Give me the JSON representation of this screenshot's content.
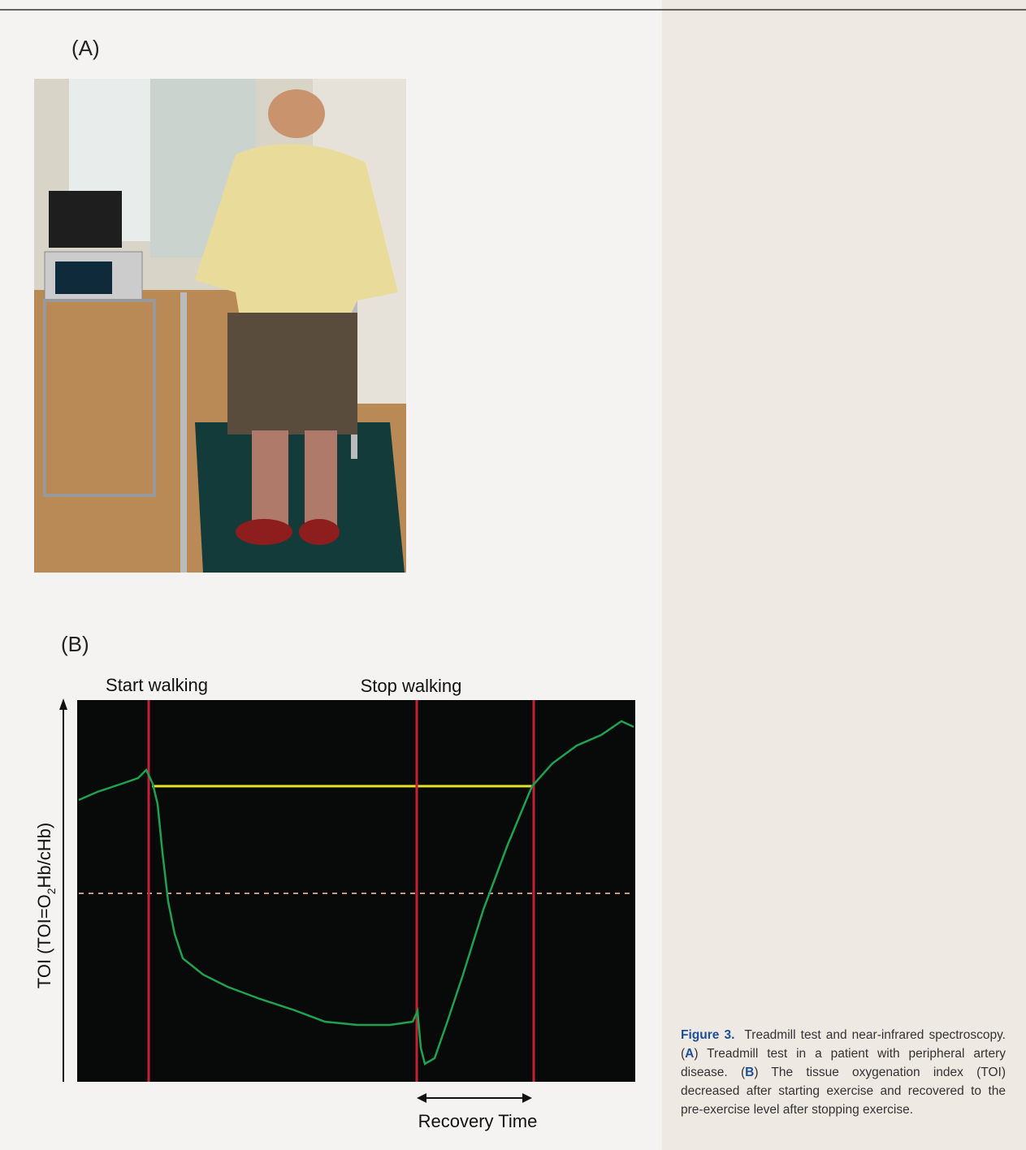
{
  "panel_a": {
    "label": "(A)"
  },
  "panel_b": {
    "label": "(B)",
    "annotations": {
      "start": "Start walking",
      "stop": "Stop walking",
      "recovery": "Recovery Time"
    },
    "y_axis_label": {
      "prefix": "TOI  (TOI=O",
      "sub": "2",
      "suffix": "Hb/cHb)"
    }
  },
  "caption": {
    "figure_label": "Figure 3.",
    "parts": [
      "Treadmill test and near-infrared spectroscopy. (",
      "A",
      ") Treadmill test in a patient with peripheral artery disease. (",
      "B",
      ") The tissue oxygenation index (TOI) decreased after starting exercise and recovered to the pre-exercise level after stopping exercise."
    ]
  }
}
